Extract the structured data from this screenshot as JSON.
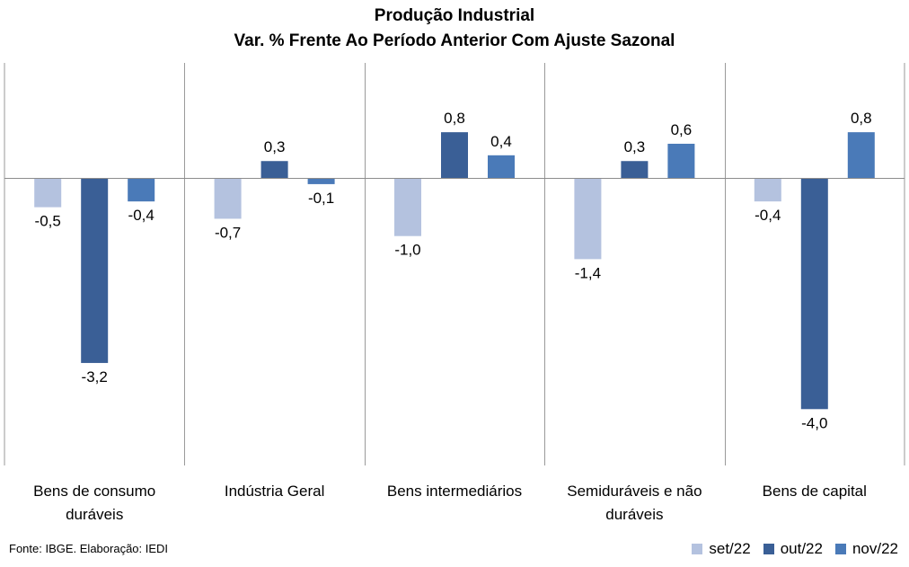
{
  "chart_data": {
    "type": "bar",
    "title": "Produção Industrial",
    "subtitle": "Var. % Frente Ao Período Anterior Com Ajuste Sazonal",
    "categories": [
      [
        "Bens de consumo",
        "duráveis"
      ],
      [
        "Indústria Geral"
      ],
      [
        "Bens intermediários"
      ],
      [
        "Semiduráveis e não",
        "duráveis"
      ],
      [
        "Bens de capital"
      ]
    ],
    "series": [
      {
        "name": "set/22",
        "color": "#b4c2df",
        "values": [
          -0.5,
          -0.7,
          -1.0,
          -1.4,
          -0.4
        ],
        "labels": [
          "-0,5",
          "-0,7",
          "-1,0",
          "-1,4",
          "-0,4"
        ]
      },
      {
        "name": "out/22",
        "color": "#3a5f96",
        "values": [
          -3.2,
          0.3,
          0.8,
          0.3,
          -4.0
        ],
        "labels": [
          "-3,2",
          "0,3",
          "0,8",
          "0,3",
          "-4,0"
        ]
      },
      {
        "name": "nov/22",
        "color": "#4a7ab8",
        "values": [
          -0.4,
          -0.1,
          0.4,
          0.6,
          0.8
        ],
        "labels": [
          "-0,4",
          "-0,1",
          "0,4",
          "0,6",
          "0,8"
        ]
      }
    ],
    "ylim": [
      -5.0,
      2.0
    ],
    "grid": false,
    "legend_position": "bottom-right"
  },
  "footer": {
    "source": "Fonte: IBGE. Elaboração: IEDI"
  }
}
